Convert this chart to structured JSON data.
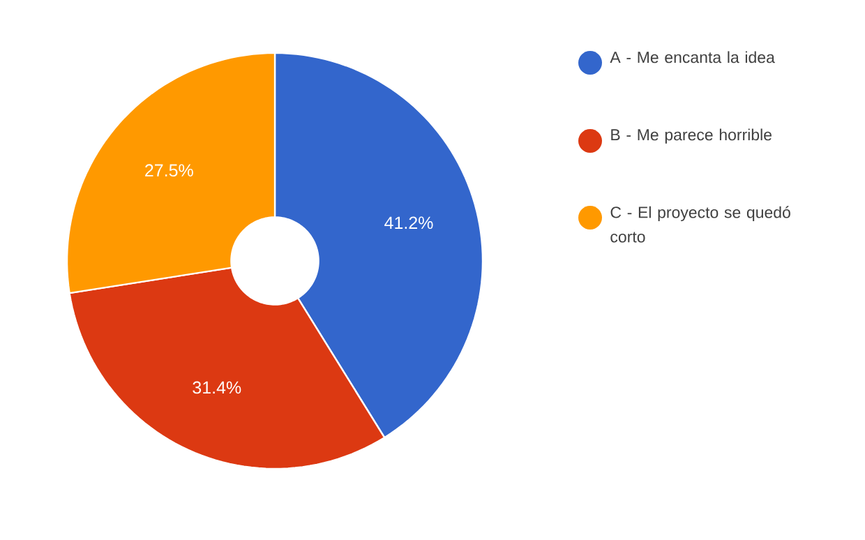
{
  "chart_data": {
    "type": "donut",
    "categories": [
      "A - Me encanta la idea",
      "B - Me parece horrible",
      "C - El proyecto se quedó corto"
    ],
    "values": [
      41.2,
      31.4,
      27.5
    ],
    "colors": [
      "#3366cc",
      "#dc3912",
      "#ff9900"
    ],
    "value_labels": [
      "41.2%",
      "31.4%",
      "27.5%"
    ],
    "legend": "right"
  }
}
